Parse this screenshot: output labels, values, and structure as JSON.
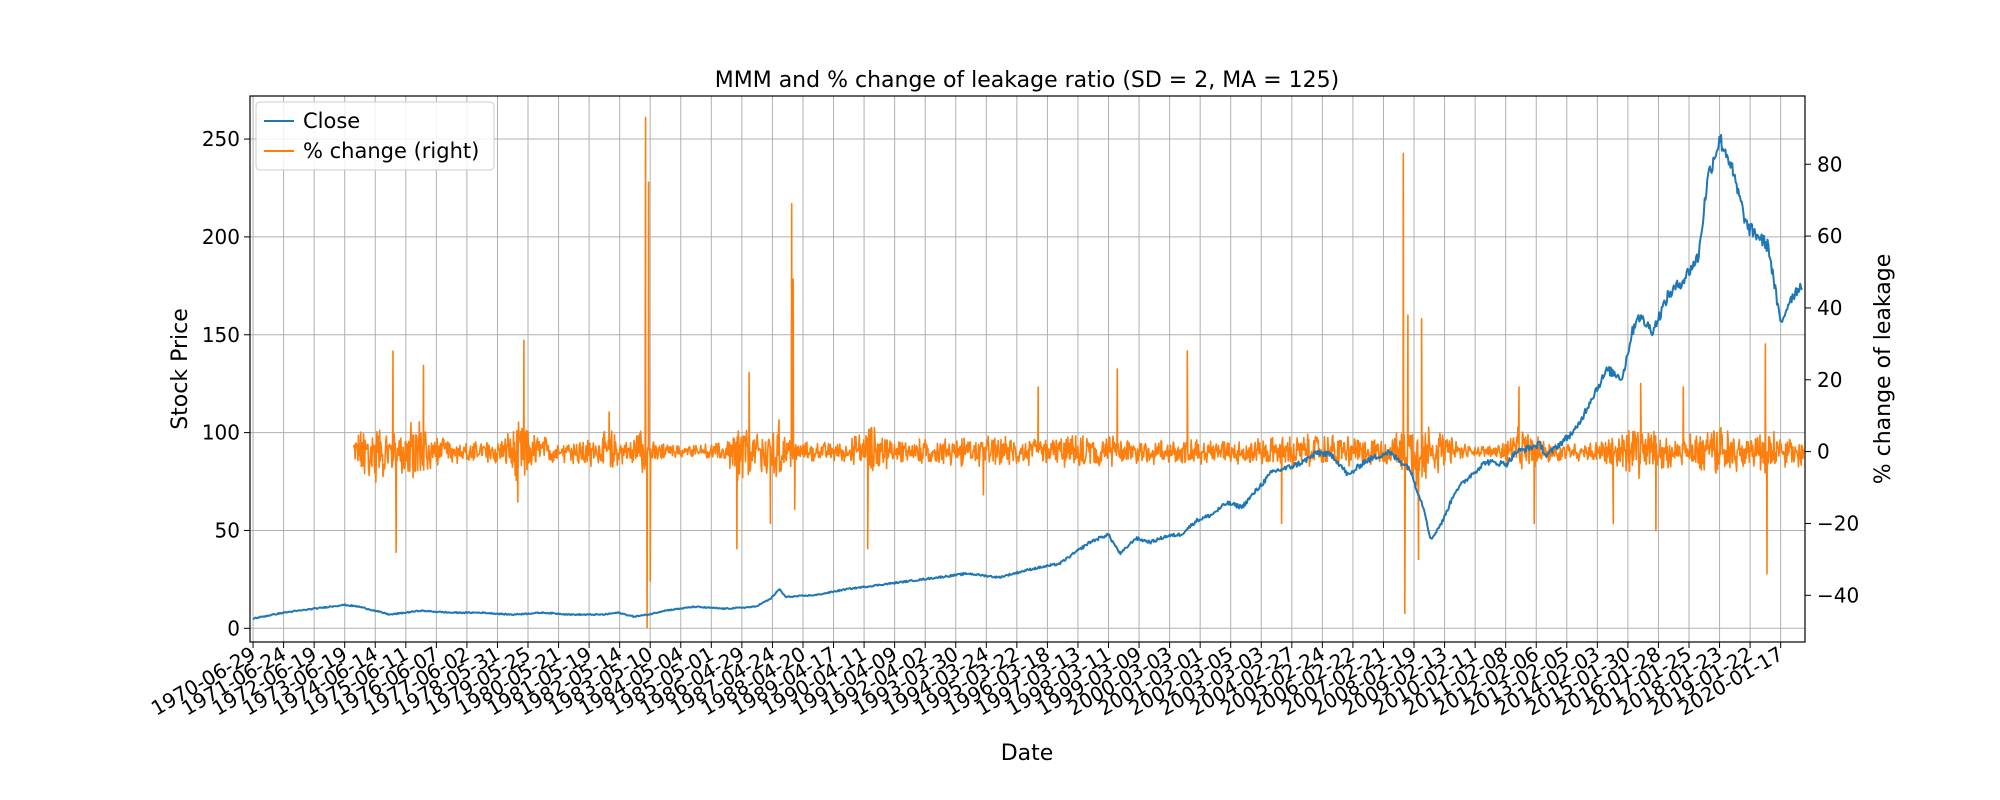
{
  "chart_data": {
    "type": "line",
    "title": "MMM and % change of leakage ratio (SD = 2, MA = 125)",
    "xlabel": "Date",
    "ylabel": "Stock Price",
    "ylabel_right": "% change of leakage",
    "grid": true,
    "legend_position": "top-left",
    "xlim": [
      1970.4,
      2021.5
    ],
    "ylim": [
      -7,
      272
    ],
    "ylim_right": [
      -53,
      99
    ],
    "yticks": [
      0,
      50,
      100,
      150,
      200,
      250
    ],
    "yticks_right": [
      -40,
      -20,
      0,
      20,
      40,
      60,
      80
    ],
    "xtick_labels": [
      "1970-06-29",
      "1971-06-24",
      "1972-06-19",
      "1973-06-19",
      "1974-06-14",
      "1975-06-11",
      "1976-06-07",
      "1977-06-02",
      "1978-05-31",
      "1979-05-25",
      "1980-05-21",
      "1981-05-19",
      "1982-05-14",
      "1983-05-10",
      "1984-05-04",
      "1985-05-01",
      "1986-04-29",
      "1987-04-24",
      "1988-04-20",
      "1989-04-17",
      "1990-04-11",
      "1991-04-09",
      "1992-04-02",
      "1993-03-30",
      "1994-03-24",
      "1995-03-22",
      "1996-03-18",
      "1997-03-13",
      "1998-03-11",
      "1999-03-09",
      "2000-03-03",
      "2001-03-01",
      "2002-03-05",
      "2003-03-03",
      "2004-02-27",
      "2005-02-24",
      "2006-02-22",
      "2007-02-21",
      "2008-02-19",
      "2009-02-13",
      "2010-02-11",
      "2011-02-08",
      "2012-02-06",
      "2013-02-05",
      "2014-02-03",
      "2015-01-30",
      "2016-01-28",
      "2017-01-25",
      "2018-01-23",
      "2019-01-22",
      "2020-01-17"
    ],
    "series": [
      {
        "name": "Close",
        "axis": "left",
        "color": "#1f77b4",
        "x": [
          1970.5,
          1971.5,
          1972.5,
          1973.0,
          1973.5,
          1974.0,
          1974.5,
          1975.0,
          1975.5,
          1976.0,
          1977.0,
          1978.0,
          1979.0,
          1980.0,
          1981.0,
          1982.0,
          1982.5,
          1983.0,
          1983.5,
          1984.0,
          1985.0,
          1986.0,
          1987.0,
          1987.5,
          1987.8,
          1988.0,
          1989.0,
          1990.0,
          1991.0,
          1992.0,
          1993.0,
          1994.0,
          1995.0,
          1995.5,
          1996.0,
          1997.0,
          1998.0,
          1998.6,
          1999.0,
          1999.5,
          2000.0,
          2000.5,
          2001.0,
          2001.5,
          2002.0,
          2002.5,
          2003.0,
          2004.0,
          2004.5,
          2005.0,
          2005.5,
          2006.0,
          2006.5,
          2007.0,
          2007.8,
          2008.5,
          2009.0,
          2009.2,
          2009.6,
          2010.0,
          2010.5,
          2011.0,
          2011.7,
          2012.0,
          2012.8,
          2013.0,
          2013.5,
          2014.0,
          2014.5,
          2015.0,
          2015.5,
          2015.8,
          2016.0,
          2016.5,
          2017.0,
          2017.5,
          2018.0,
          2018.3,
          2018.7,
          2019.0,
          2019.6,
          2020.0,
          2020.3,
          2020.7,
          2021.0,
          2021.4
        ],
        "values": [
          5,
          8,
          10,
          11,
          12,
          11,
          9,
          7,
          8,
          9,
          8,
          8,
          7,
          8,
          7,
          7,
          8,
          6,
          7,
          9,
          11,
          10,
          11,
          15,
          20,
          16,
          17,
          20,
          22,
          24,
          26,
          28,
          26,
          28,
          30,
          33,
          44,
          48,
          38,
          46,
          44,
          47,
          48,
          55,
          58,
          64,
          62,
          80,
          82,
          85,
          90,
          88,
          78,
          85,
          90,
          82,
          60,
          45,
          55,
          70,
          78,
          85,
          84,
          90,
          94,
          88,
          95,
          102,
          118,
          132,
          128,
          150,
          160,
          152,
          170,
          178,
          190,
          230,
          250,
          240,
          205,
          200,
          195,
          155,
          168,
          176
        ]
      },
      {
        "name": "% change (right)",
        "axis": "right",
        "color": "#ff7f0e",
        "envelope": [
          [
            1973.8,
            6,
            -6
          ],
          [
            1974.5,
            9,
            -9
          ],
          [
            1975.2,
            6,
            -8
          ],
          [
            1976.0,
            12,
            -10
          ],
          [
            1976.4,
            5,
            -5
          ],
          [
            1977.5,
            3,
            -3
          ],
          [
            1978.5,
            4,
            -4
          ],
          [
            1979.3,
            9,
            -9
          ],
          [
            1979.7,
            6,
            -6
          ],
          [
            1980.5,
            4,
            -4
          ],
          [
            1981.5,
            4,
            -5
          ],
          [
            1982.3,
            7,
            -7
          ],
          [
            1982.8,
            3,
            -3
          ],
          [
            1983.3,
            10,
            -8
          ],
          [
            1983.6,
            3,
            -3
          ],
          [
            1984.5,
            2,
            -2
          ],
          [
            1986.0,
            3,
            -3
          ],
          [
            1986.5,
            10,
            -12
          ],
          [
            1987.0,
            5,
            -7
          ],
          [
            1987.8,
            10,
            -10
          ],
          [
            1988.3,
            3,
            -3
          ],
          [
            1990.0,
            3,
            -3
          ],
          [
            1990.8,
            9,
            -9
          ],
          [
            1991.5,
            4,
            -4
          ],
          [
            1993.0,
            4,
            -4
          ],
          [
            1994.5,
            5,
            -5
          ],
          [
            1996.0,
            4,
            -4
          ],
          [
            1997.5,
            5,
            -5
          ],
          [
            1998.5,
            5,
            -5
          ],
          [
            2000.0,
            4,
            -4
          ],
          [
            2001.5,
            4,
            -4
          ],
          [
            2003.0,
            4,
            -4
          ],
          [
            2004.5,
            5,
            -5
          ],
          [
            2006.0,
            6,
            -6
          ],
          [
            2007.0,
            4,
            -4
          ],
          [
            2008.0,
            5,
            -5
          ],
          [
            2008.8,
            12,
            -12
          ],
          [
            2009.3,
            8,
            -9
          ],
          [
            2010.0,
            4,
            -4
          ],
          [
            2010.5,
            2,
            -2
          ],
          [
            2011.3,
            2,
            -2
          ],
          [
            2012.2,
            8,
            -8
          ],
          [
            2012.8,
            4,
            -4
          ],
          [
            2013.5,
            3,
            -3
          ],
          [
            2014.5,
            3,
            -3
          ],
          [
            2015.3,
            5,
            -5
          ],
          [
            2016.0,
            10,
            -10
          ],
          [
            2016.6,
            6,
            -6
          ],
          [
            2017.5,
            4,
            -4
          ],
          [
            2018.2,
            8,
            -8
          ],
          [
            2018.8,
            8,
            -8
          ],
          [
            2019.5,
            5,
            -5
          ],
          [
            2020.3,
            8,
            -8
          ],
          [
            2020.8,
            5,
            -5
          ],
          [
            2021.4,
            5,
            -5
          ]
        ],
        "spikes": [
          [
            1975.1,
            28
          ],
          [
            1975.2,
            -28
          ],
          [
            1976.1,
            24
          ],
          [
            1979.4,
            31
          ],
          [
            1979.2,
            -14
          ],
          [
            1982.2,
            11
          ],
          [
            1983.4,
            93
          ],
          [
            1983.45,
            -49
          ],
          [
            1983.5,
            75
          ],
          [
            1983.55,
            -36
          ],
          [
            1986.4,
            -27
          ],
          [
            1986.8,
            22
          ],
          [
            1987.5,
            -20
          ],
          [
            1988.2,
            69
          ],
          [
            1988.25,
            48
          ],
          [
            1988.3,
            -16
          ],
          [
            1990.7,
            -27
          ],
          [
            1994.5,
            -12
          ],
          [
            1996.3,
            18
          ],
          [
            1998.9,
            23
          ],
          [
            2001.2,
            28
          ],
          [
            2004.3,
            -20
          ],
          [
            2008.3,
            83
          ],
          [
            2008.35,
            -45
          ],
          [
            2008.45,
            38
          ],
          [
            2008.9,
            37
          ],
          [
            2008.8,
            -30
          ],
          [
            2012.1,
            18
          ],
          [
            2012.6,
            -20
          ],
          [
            2015.2,
            -20
          ],
          [
            2016.1,
            19
          ],
          [
            2016.6,
            -22
          ],
          [
            2017.5,
            18
          ],
          [
            2020.2,
            30
          ],
          [
            2020.25,
            -34
          ]
        ]
      }
    ]
  }
}
